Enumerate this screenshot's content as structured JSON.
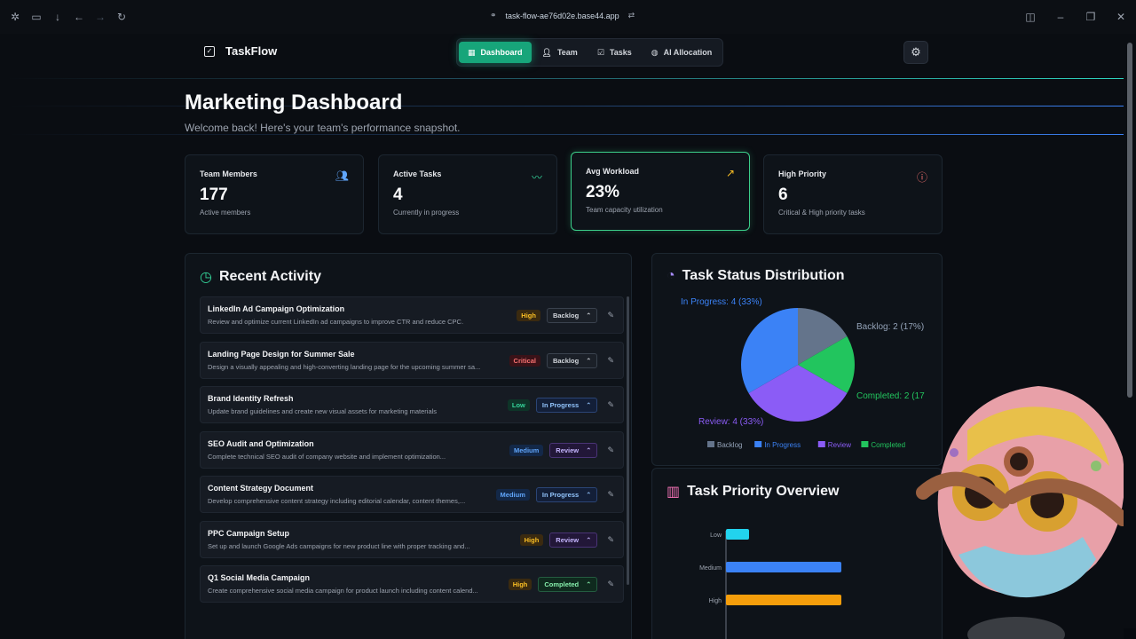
{
  "browser": {
    "url": "task-flow-ae76d02e.base44.app"
  },
  "nav": {
    "brand": "TaskFlow",
    "tabs": [
      {
        "label": "Dashboard",
        "icon": "grid-icon"
      },
      {
        "label": "Team",
        "icon": "users-icon"
      },
      {
        "label": "Tasks",
        "icon": "checkbox-icon"
      },
      {
        "label": "AI Allocation",
        "icon": "brain-icon"
      }
    ]
  },
  "header": {
    "title": "Marketing Dashboard",
    "subtitle": "Welcome back! Here's your team's performance snapshot."
  },
  "stats": [
    {
      "label": "Team Members",
      "value": "177",
      "sub": "Active members",
      "icon": "users-icon",
      "color": "#60a5fa"
    },
    {
      "label": "Active Tasks",
      "value": "4",
      "sub": "Currently in progress",
      "icon": "activity-icon",
      "color": "#34d399"
    },
    {
      "label": "Avg Workload",
      "value": "23%",
      "sub": "Team capacity utilization",
      "icon": "trending-up-icon",
      "color": "#fbbf24"
    },
    {
      "label": "High Priority",
      "value": "6",
      "sub": "Critical & High priority tasks",
      "icon": "alert-circle-icon",
      "color": "#f87171"
    }
  ],
  "activity": {
    "title": "Recent Activity",
    "items": [
      {
        "title": "LinkedIn Ad Campaign Optimization",
        "desc": "Review and optimize current LinkedIn ad campaigns to improve CTR and reduce CPC.",
        "priority": "High",
        "status": "Backlog"
      },
      {
        "title": "Landing Page Design for Summer Sale",
        "desc": "Design a visually appealing and high-converting landing page for the upcoming summer sa...",
        "priority": "Critical",
        "status": "Backlog"
      },
      {
        "title": "Brand Identity Refresh",
        "desc": "Update brand guidelines and create new visual assets for marketing materials",
        "priority": "Low",
        "status": "In Progress"
      },
      {
        "title": "SEO Audit and Optimization",
        "desc": "Complete technical SEO audit of company website and implement optimization...",
        "priority": "Medium",
        "status": "Review"
      },
      {
        "title": "Content Strategy Document",
        "desc": "Develop comprehensive content strategy including editorial calendar, content themes,...",
        "priority": "Medium",
        "status": "In Progress"
      },
      {
        "title": "PPC Campaign Setup",
        "desc": "Set up and launch Google Ads campaigns for new product line with proper tracking and...",
        "priority": "High",
        "status": "Review"
      },
      {
        "title": "Q1 Social Media Campaign",
        "desc": "Create comprehensive social media campaign for product launch including content calend...",
        "priority": "High",
        "status": "Completed"
      }
    ]
  },
  "chart_data": [
    {
      "type": "pie",
      "title": "Task Status Distribution",
      "categories": [
        "Backlog",
        "In Progress",
        "Review",
        "Completed"
      ],
      "values": [
        2,
        4,
        4,
        2
      ],
      "labels": [
        "Backlog: 2 (17%)",
        "In Progress: 4 (33%)",
        "Review: 4 (33%)",
        "Completed: 2 (17"
      ],
      "colors": [
        "#64748b",
        "#3b82f6",
        "#8b5cf6",
        "#22c55e"
      ],
      "legend": "bottom"
    },
    {
      "type": "bar",
      "title": "Task Priority Overview",
      "orientation": "horizontal",
      "categories": [
        "Low",
        "Medium",
        "High"
      ],
      "values": [
        1,
        5,
        5
      ],
      "colors": [
        "#22d3ee",
        "#3b82f6",
        "#f59e0b"
      ]
    }
  ]
}
